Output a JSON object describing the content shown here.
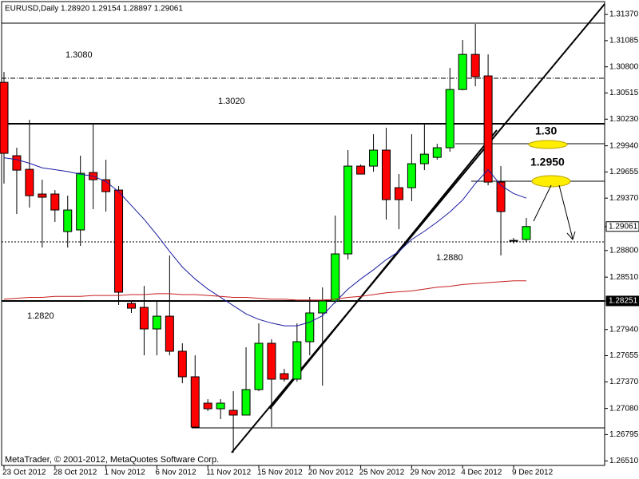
{
  "chart_data": {
    "type": "candlestick",
    "title": "EURUSD,Daily  1.28920 1.29154 1.28897 1.29061",
    "watermark": "MetaTrader, © 2001-2012, MetaQuotes Software Corp.",
    "categories": [
      "23 Oct 2012",
      null,
      null,
      null,
      "28 Oct 2012",
      null,
      null,
      null,
      "1 Nov 2012",
      null,
      null,
      null,
      "6 Nov 2012",
      null,
      null,
      null,
      "11 Nov 2012",
      null,
      null,
      null,
      "15 Nov 2012",
      null,
      null,
      null,
      "20 Nov 2012",
      null,
      null,
      null,
      "25 Nov 2012",
      null,
      null,
      null,
      "29 Nov 2012",
      null,
      null,
      null,
      "4 Dec 2012",
      null,
      null,
      null,
      "9 Dec 2012",
      null
    ],
    "open": [
      1.30631,
      1.29832,
      1.29684,
      1.29415,
      1.29415,
      1.29006,
      1.29024,
      1.29649,
      1.29571,
      1.29458,
      1.28224,
      1.28181,
      1.27946,
      1.28085,
      1.27703,
      1.27425,
      1.27138,
      1.27077,
      1.2706,
      1.27008,
      1.27286,
      1.2779,
      1.27459,
      1.27399,
      1.27807,
      1.2812,
      1.2825,
      1.28763,
      1.29719,
      1.29719,
      1.29893,
      1.29484,
      1.29484,
      1.29745,
      1.29814,
      1.29919,
      1.30553,
      1.30935,
      1.30701,
      1.29545,
      1.28902,
      1.2892
    ],
    "high": [
      1.30744,
      1.29919,
      1.30223,
      1.29571,
      1.29458,
      1.29397,
      1.29832,
      1.30179,
      1.29788,
      1.29502,
      1.28242,
      1.28415,
      1.28242,
      1.28746,
      1.2779,
      1.27659,
      1.27181,
      1.27181,
      1.27268,
      1.27746,
      1.28007,
      1.27833,
      1.27512,
      1.28007,
      1.28294,
      1.28398,
      1.2918,
      1.29893,
      1.29736,
      1.30066,
      1.30136,
      1.29632,
      1.30066,
      1.30179,
      1.29962,
      1.30788,
      1.31092,
      1.31266,
      1.30935,
      1.29719,
      1.28937,
      1.29154
    ],
    "low": [
      1.29528,
      1.29197,
      1.29267,
      1.28833,
      1.29111,
      1.28833,
      1.2885,
      1.2925,
      1.29224,
      1.28207,
      1.2812,
      1.27659,
      1.27659,
      1.27659,
      1.27355,
      1.26869,
      1.27051,
      1.26964,
      1.26599,
      1.27008,
      1.27268,
      1.26877,
      1.27373,
      1.27373,
      1.27659,
      1.27329,
      1.28224,
      1.28702,
      1.29632,
      1.29658,
      1.29137,
      1.29032,
      1.29337,
      1.29675,
      1.29788,
      1.29875,
      1.30544,
      1.30588,
      1.2951,
      1.28746,
      1.28876,
      1.28897
    ],
    "close": [
      1.29858,
      1.29675,
      1.29397,
      1.2938,
      1.29241,
      1.29241,
      1.29641,
      1.29571,
      1.29441,
      1.28346,
      1.28172,
      1.27946,
      1.28085,
      1.27703,
      1.27425,
      1.26877,
      1.27077,
      1.27138,
      1.27008,
      1.27286,
      1.2779,
      1.27399,
      1.27399,
      1.27807,
      1.2812,
      1.2825,
      1.28763,
      1.29719,
      1.29632,
      1.29893,
      1.29354,
      1.29354,
      1.29745,
      1.29849,
      1.29919,
      1.30553,
      1.30935,
      1.30692,
      1.29545,
      1.29224,
      1.2891,
      1.29061
    ],
    "colors": {
      "up": "#00ff00",
      "down": "#ff0000"
    },
    "ma": [
      {
        "color": "#1a1aa0",
        "values": [
          1.2981,
          1.2979,
          1.2975,
          1.297,
          1.2968,
          1.2966,
          1.2963,
          1.2961,
          1.2955,
          1.2944,
          1.2929,
          1.2914,
          1.2897,
          1.2879,
          1.2862,
          1.2849,
          1.2838,
          1.2829,
          1.282,
          1.2811,
          1.2805,
          1.2801,
          1.2798,
          1.2798,
          1.2802,
          1.2809,
          1.2824,
          1.2838,
          1.2849,
          1.2859,
          1.287,
          1.2879,
          1.2892,
          1.2901,
          1.2911,
          1.2922,
          1.2935,
          1.2953,
          1.2968,
          1.2951,
          1.2942,
          1.2937
        ]
      },
      {
        "color": "#c81e1e",
        "values": [
          1.2827,
          1.2828,
          1.2829,
          1.2829,
          1.283,
          1.283,
          1.283,
          1.2831,
          1.2831,
          1.2831,
          1.2832,
          1.2832,
          1.2833,
          1.2833,
          1.2832,
          1.2832,
          1.2831,
          1.283,
          1.2829,
          1.2829,
          1.2828,
          1.2827,
          1.2827,
          1.2826,
          1.2826,
          1.2826,
          1.2827,
          1.2829,
          1.283,
          1.2832,
          1.2834,
          1.2835,
          1.2836,
          1.2838,
          1.284,
          1.2841,
          1.2843,
          1.2844,
          1.2845,
          1.2846,
          1.2847,
          1.2847
        ]
      }
    ],
    "ylim": [
      1.2646,
      1.3151
    ],
    "yticks": [
      {
        "value": 1.3137,
        "label": "1.31370"
      },
      {
        "value": 1.31085,
        "label": "1.31085"
      },
      {
        "value": 1.308,
        "label": "1.30800"
      },
      {
        "value": 1.30515,
        "label": "1.30515"
      },
      {
        "value": 1.3023,
        "label": "1.30230"
      },
      {
        "value": 1.2994,
        "label": "1.29940"
      },
      {
        "value": 1.29655,
        "label": "1.29655"
      },
      {
        "value": 1.2937,
        "label": "1.29370"
      },
      {
        "value": 1.29061,
        "label": "1.29061",
        "background": "#ffffff"
      },
      {
        "value": 1.288,
        "label": "1.28800"
      },
      {
        "value": 1.2851,
        "label": "1.28510"
      },
      {
        "value": 1.28251,
        "label": "1.28251",
        "background": "#000000"
      },
      {
        "value": 1.2794,
        "label": "1.27940"
      },
      {
        "value": 1.27655,
        "label": "1.27655"
      },
      {
        "value": 1.2737,
        "label": "1.27370"
      },
      {
        "value": 1.2708,
        "label": "1.27080"
      },
      {
        "value": 1.26795,
        "label": "1.26795"
      },
      {
        "value": 1.2651,
        "label": "1.26510"
      }
    ],
    "grid": false,
    "annotations": [
      "1.3080",
      "1.3020",
      "1.2880",
      "1.2820",
      "1.30",
      "1.2950"
    ]
  }
}
